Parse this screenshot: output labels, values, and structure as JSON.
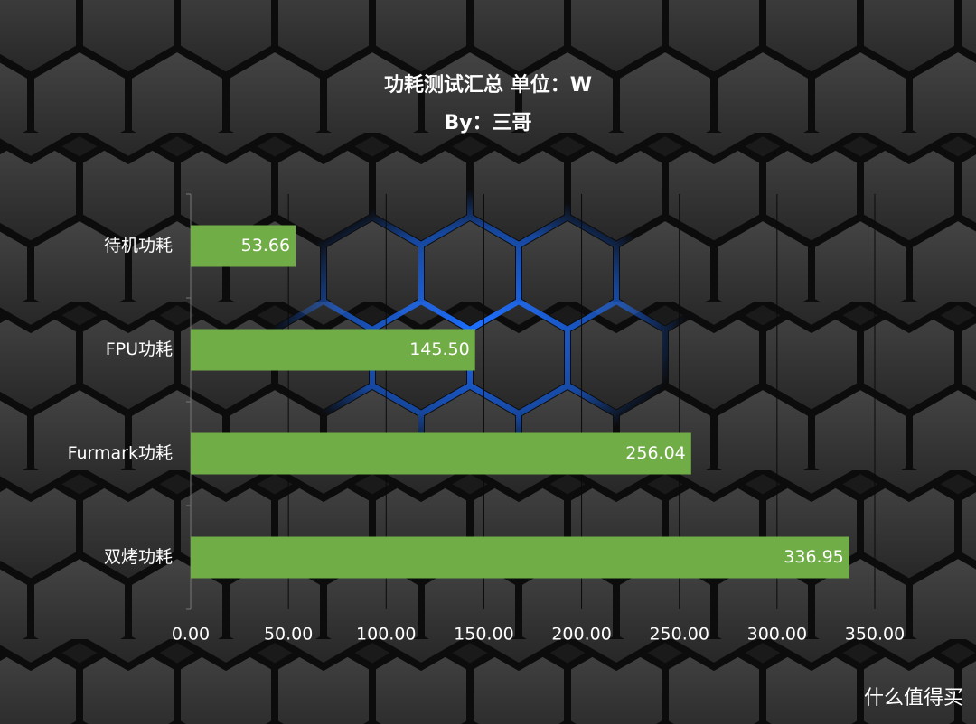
{
  "chart_data": {
    "type": "bar",
    "orientation": "horizontal",
    "title": "功耗测试汇总 单位：W",
    "subtitle": "By：三哥",
    "categories": [
      "待机功耗",
      "FPU功耗",
      "Furmark功耗",
      "双烤功耗"
    ],
    "values": [
      53.66,
      145.5,
      256.04,
      336.95
    ],
    "value_labels": [
      "53.66",
      "145.50",
      "256.04",
      "336.95"
    ],
    "color": "#70ad47",
    "xlim": [
      0,
      350
    ],
    "xticks": [
      {
        "value": 0,
        "label": "0.00"
      },
      {
        "value": 50,
        "label": "50.00"
      },
      {
        "value": 100,
        "label": "100.00"
      },
      {
        "value": 150,
        "label": "150.00"
      },
      {
        "value": 200,
        "label": "200.00"
      },
      {
        "value": 250,
        "label": "250.00"
      },
      {
        "value": 300,
        "label": "300.00"
      },
      {
        "value": 350,
        "label": "350.00"
      }
    ],
    "grid": true,
    "watermark": "什么值得买"
  }
}
